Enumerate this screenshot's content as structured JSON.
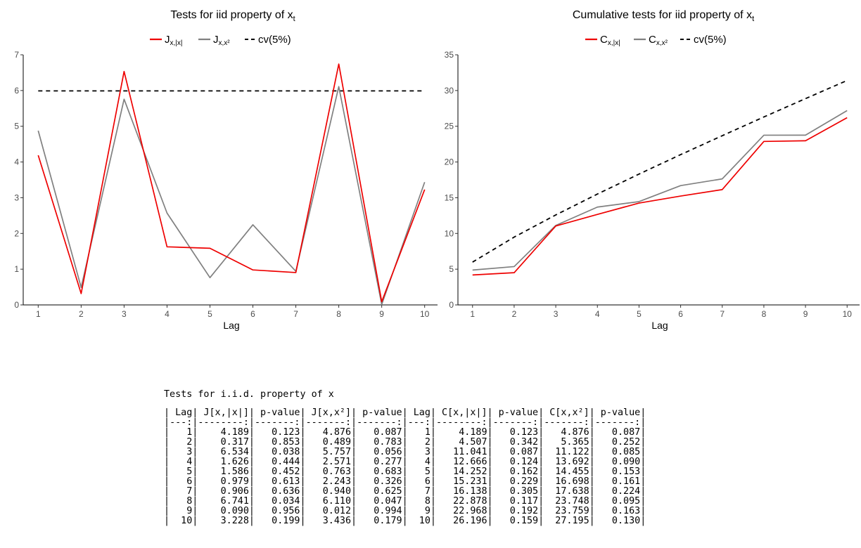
{
  "left_panel": {
    "title": "Tests for iid property of x",
    "title_sub": "t",
    "legend": [
      {
        "main": "J",
        "sub": "x,|x|",
        "color": "#ee0000",
        "style": "solid"
      },
      {
        "main": "J",
        "sub": "x,x²",
        "color": "#808080",
        "style": "solid"
      },
      {
        "main": "cv(5%)",
        "sub": "",
        "color": "#000000",
        "style": "dashed"
      }
    ],
    "xlabel": "Lag"
  },
  "right_panel": {
    "title": "Cumulative tests for iid property of x",
    "title_sub": "t",
    "legend": [
      {
        "main": "C",
        "sub": "x,|x|",
        "color": "#ee0000",
        "style": "solid"
      },
      {
        "main": "C",
        "sub": "x,x²",
        "color": "#808080",
        "style": "solid"
      },
      {
        "main": "cv(5%)",
        "sub": "",
        "color": "#000000",
        "style": "dashed"
      }
    ],
    "xlabel": "Lag"
  },
  "chart_data": [
    {
      "type": "line",
      "x": [
        1,
        2,
        3,
        4,
        5,
        6,
        7,
        8,
        9,
        10
      ],
      "series": [
        {
          "name": "J x,|x|",
          "color": "#ee0000",
          "values": [
            4.189,
            0.317,
            6.534,
            1.626,
            1.586,
            0.979,
            0.906,
            6.741,
            0.09,
            3.228
          ]
        },
        {
          "name": "J x,x²",
          "color": "#808080",
          "values": [
            4.876,
            0.489,
            5.757,
            2.571,
            0.763,
            2.243,
            0.94,
            6.11,
            0.012,
            3.436
          ]
        },
        {
          "name": "cv(5%)",
          "color": "#000000",
          "values": [
            5.99,
            5.99,
            5.99,
            5.99,
            5.99,
            5.99,
            5.99,
            5.99,
            5.99,
            5.99
          ]
        }
      ],
      "xticks": [
        1,
        2,
        3,
        4,
        5,
        6,
        7,
        8,
        9,
        10
      ],
      "yticks": [
        0,
        1,
        2,
        3,
        4,
        5,
        6,
        7
      ],
      "xlim": [
        0.7,
        10.3
      ],
      "ylim": [
        0,
        7
      ],
      "xlabel": "Lag",
      "grid": false,
      "legend_position": "top"
    },
    {
      "type": "line",
      "x": [
        1,
        2,
        3,
        4,
        5,
        6,
        7,
        8,
        9,
        10
      ],
      "series": [
        {
          "name": "C x,|x|",
          "color": "#ee0000",
          "values": [
            4.189,
            4.507,
            11.041,
            12.666,
            14.252,
            15.231,
            16.138,
            22.878,
            22.968,
            26.196
          ]
        },
        {
          "name": "C x,x²",
          "color": "#808080",
          "values": [
            4.876,
            5.365,
            11.122,
            13.692,
            14.455,
            16.698,
            17.638,
            23.748,
            23.759,
            27.195
          ]
        },
        {
          "name": "cv(5%)",
          "color": "#000000",
          "values": [
            5.99,
            9.49,
            12.59,
            15.51,
            18.31,
            21.03,
            23.68,
            26.3,
            28.87,
            31.41
          ]
        }
      ],
      "xticks": [
        1,
        2,
        3,
        4,
        5,
        6,
        7,
        8,
        9,
        10
      ],
      "yticks": [
        0,
        5,
        10,
        15,
        20,
        25,
        30,
        35
      ],
      "xlim": [
        0.7,
        10.3
      ],
      "ylim": [
        0,
        35
      ],
      "xlabel": "Lag",
      "grid": false,
      "legend_position": "top"
    }
  ],
  "table": {
    "title": "Tests for i.i.d. property of x",
    "headers": [
      "Lag",
      "J[x,|x|]",
      "p-value",
      "J[x,x²]",
      "p-value",
      "Lag",
      "C[x,|x|]",
      "p-value",
      "C[x,x²]",
      "p-value"
    ],
    "widths": [
      4,
      9,
      8,
      8,
      8,
      4,
      9,
      8,
      8,
      8
    ],
    "rows": [
      [
        "1",
        "4.189",
        "0.123",
        "4.876",
        "0.087",
        "1",
        "4.189",
        "0.123",
        "4.876",
        "0.087"
      ],
      [
        "2",
        "0.317",
        "0.853",
        "0.489",
        "0.783",
        "2",
        "4.507",
        "0.342",
        "5.365",
        "0.252"
      ],
      [
        "3",
        "6.534",
        "0.038",
        "5.757",
        "0.056",
        "3",
        "11.041",
        "0.087",
        "11.122",
        "0.085"
      ],
      [
        "4",
        "1.626",
        "0.444",
        "2.571",
        "0.277",
        "4",
        "12.666",
        "0.124",
        "13.692",
        "0.090"
      ],
      [
        "5",
        "1.586",
        "0.452",
        "0.763",
        "0.683",
        "5",
        "14.252",
        "0.162",
        "14.455",
        "0.153"
      ],
      [
        "6",
        "0.979",
        "0.613",
        "2.243",
        "0.326",
        "6",
        "15.231",
        "0.229",
        "16.698",
        "0.161"
      ],
      [
        "7",
        "0.906",
        "0.636",
        "0.940",
        "0.625",
        "7",
        "16.138",
        "0.305",
        "17.638",
        "0.224"
      ],
      [
        "8",
        "6.741",
        "0.034",
        "6.110",
        "0.047",
        "8",
        "22.878",
        "0.117",
        "23.748",
        "0.095"
      ],
      [
        "9",
        "0.090",
        "0.956",
        "0.012",
        "0.994",
        "9",
        "22.968",
        "0.192",
        "23.759",
        "0.163"
      ],
      [
        "10",
        "3.228",
        "0.199",
        "3.436",
        "0.179",
        "10",
        "26.196",
        "0.159",
        "27.195",
        "0.130"
      ]
    ]
  }
}
